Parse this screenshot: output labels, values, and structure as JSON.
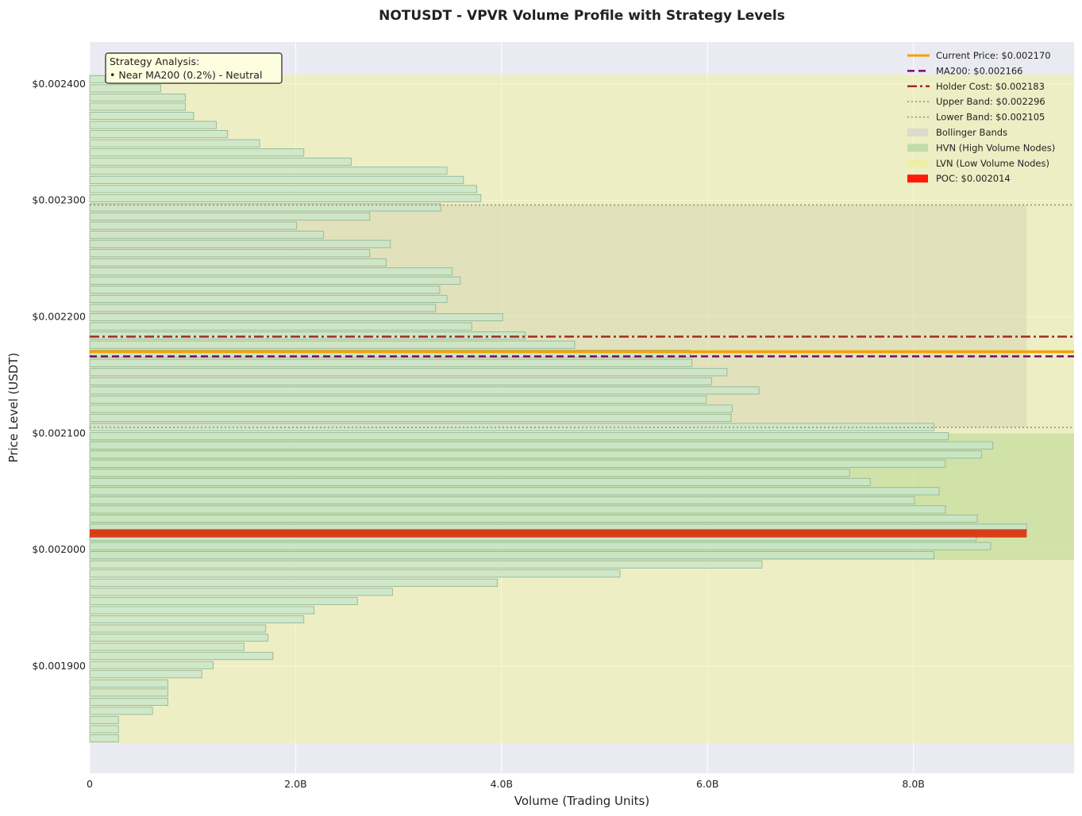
{
  "chart_data": {
    "type": "bar",
    "orientation": "horizontal",
    "title": "NOTUSDT - VPVR Volume Profile with Strategy Levels",
    "xlabel": "Volume (Trading Units)",
    "ylabel": "Price Level (USDT)",
    "xlim": [
      0,
      9.56
    ],
    "ylim": [
      0.001808,
      0.002436
    ],
    "x_unit": "B",
    "x_ticks": [
      {
        "value": 0,
        "label": "0"
      },
      {
        "value": 2,
        "label": "2.0B"
      },
      {
        "value": 4,
        "label": "4.0B"
      },
      {
        "value": 6,
        "label": "6.0B"
      },
      {
        "value": 8,
        "label": "8.0B"
      }
    ],
    "y_ticks": [
      {
        "value": 0.0019,
        "label": "$0.001900"
      },
      {
        "value": 0.002,
        "label": "$0.002000"
      },
      {
        "value": 0.0021,
        "label": "$0.002100"
      },
      {
        "value": 0.0022,
        "label": "$0.002200"
      },
      {
        "value": 0.0023,
        "label": "$0.002300"
      },
      {
        "value": 0.0024,
        "label": "$0.002400"
      }
    ],
    "grid": true,
    "legend_position": "top-right",
    "profile": {
      "price_low": 0.001834,
      "price_high": 0.002408,
      "bar_color": "#c8e6c9",
      "bar_edge": "#8fb08f",
      "volumes": [
        0.28,
        0.28,
        0.28,
        0.61,
        0.76,
        0.76,
        0.76,
        1.09,
        1.2,
        1.78,
        1.5,
        1.73,
        1.71,
        2.08,
        2.18,
        2.6,
        2.94,
        3.96,
        5.15,
        6.53,
        8.2,
        8.75,
        8.61,
        9.1,
        8.62,
        8.31,
        8.01,
        8.25,
        7.58,
        7.38,
        8.31,
        8.66,
        8.77,
        8.34,
        8.2,
        6.23,
        6.24,
        5.99,
        6.5,
        6.04,
        6.19,
        5.85,
        5.83,
        4.71,
        4.23,
        3.71,
        4.01,
        3.36,
        3.47,
        3.4,
        3.6,
        3.52,
        2.88,
        2.72,
        2.92,
        2.27,
        2.01,
        2.72,
        3.41,
        3.8,
        3.76,
        3.63,
        3.47,
        2.54,
        2.08,
        1.65,
        1.34,
        1.23,
        1.01,
        0.93,
        0.93,
        0.69,
        0.15
      ]
    },
    "poc": {
      "price": 0.002014,
      "volume": 9.1,
      "color": "#dd2200"
    },
    "hvn_zone": {
      "low": 0.001991,
      "high": 0.0021,
      "color": "#b8d98f"
    },
    "lvn_zone": {
      "low": 0.001834,
      "high": 0.002408,
      "color": "#f0f0a0"
    },
    "bollinger_fill": {
      "low": 0.002105,
      "high": 0.002296,
      "xmax": 9.1,
      "color": "#c8c8a8"
    },
    "levels": [
      {
        "name": "current",
        "price": 0.00217,
        "color": "#f5a000",
        "style": "solid",
        "width": 3.5
      },
      {
        "name": "ma200",
        "price": 0.002166,
        "color": "#7b0a6b",
        "style": "dashed",
        "width": 2.5
      },
      {
        "name": "holder",
        "price": 0.002183,
        "color": "#a02d22",
        "style": "dashdot",
        "width": 2.5
      },
      {
        "name": "upper",
        "price": 0.002296,
        "color": "#8f8f7a",
        "style": "dotted",
        "width": 1.5
      },
      {
        "name": "lower",
        "price": 0.002105,
        "color": "#8f8f7a",
        "style": "dotted",
        "width": 1.5
      }
    ],
    "legend": [
      {
        "label": "Current Price: $0.002170",
        "kind": "line",
        "color": "#f5a000",
        "style": "solid",
        "width": 3
      },
      {
        "label": "MA200: $0.002166",
        "kind": "line",
        "color": "#7b0a6b",
        "style": "dashed",
        "width": 2.5
      },
      {
        "label": "Holder Cost: $0.002183",
        "kind": "line",
        "color": "#a02d22",
        "style": "dashdot",
        "width": 2.5
      },
      {
        "label": "Upper Band: $0.002296",
        "kind": "line",
        "color": "#8f8f7a",
        "style": "dotted",
        "width": 1.5
      },
      {
        "label": "Lower Band: $0.002105",
        "kind": "line",
        "color": "#8f8f7a",
        "style": "dotted",
        "width": 1.5
      },
      {
        "label": "Bollinger Bands",
        "kind": "patch",
        "color": "#dcdccc"
      },
      {
        "label": "HVN (High Volume Nodes)",
        "kind": "patch",
        "color": "#c2dcaa"
      },
      {
        "label": "LVN (Low Volume Nodes)",
        "kind": "patch",
        "color": "#eeeeaa"
      },
      {
        "label": "POC: $0.002014",
        "kind": "patch",
        "color": "#ff1a0a"
      }
    ],
    "annotation": {
      "lines": [
        "Strategy Analysis:",
        "• Near MA200 (0.2%) - Neutral"
      ],
      "background": "#fdfde0"
    },
    "colors": {
      "axes_bg": "#eaeaf2",
      "grid": "#ffffff"
    }
  }
}
